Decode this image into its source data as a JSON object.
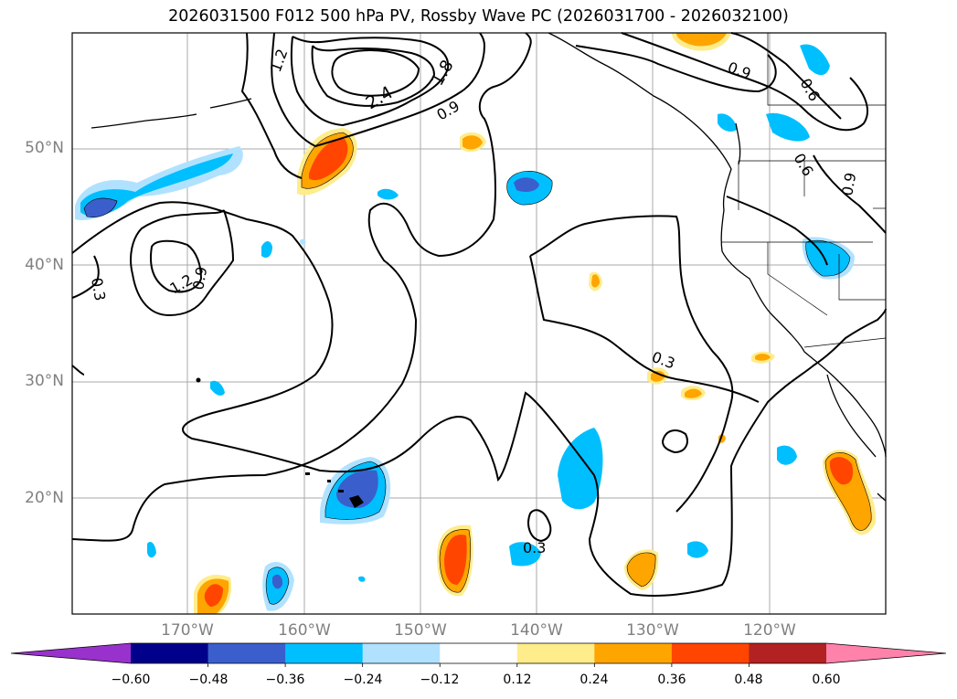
{
  "title": "2026031500 F012 500 hPa PV, Rossby Wave PC (2026031700 - 2026032100)",
  "lat_labels": [
    "50°N",
    "40°N",
    "30°N",
    "20°N"
  ],
  "lon_labels": [
    "170°W",
    "160°W",
    "150°W",
    "140°W",
    "130°W",
    "120°W"
  ],
  "contour_labels": [
    "1.2",
    "0.9",
    "0.3",
    "2.4",
    "1.8",
    "0.9",
    "1.2",
    "0.9",
    "0.6",
    "0.6",
    "0.9",
    "0.3",
    "0.3"
  ],
  "colorbar": {
    "ticks": [
      "−0.60",
      "−0.48",
      "−0.36",
      "−0.24",
      "−0.12",
      "0.12",
      "0.24",
      "0.36",
      "0.48",
      "0.60"
    ],
    "colors": [
      "#9932cc",
      "#00008b",
      "#3a5fcd",
      "#00bfff",
      "#b0e2ff",
      "#ffffff",
      "#ffec8b",
      "#ffa500",
      "#ff4500",
      "#b22222",
      "#ff82ab"
    ]
  }
}
